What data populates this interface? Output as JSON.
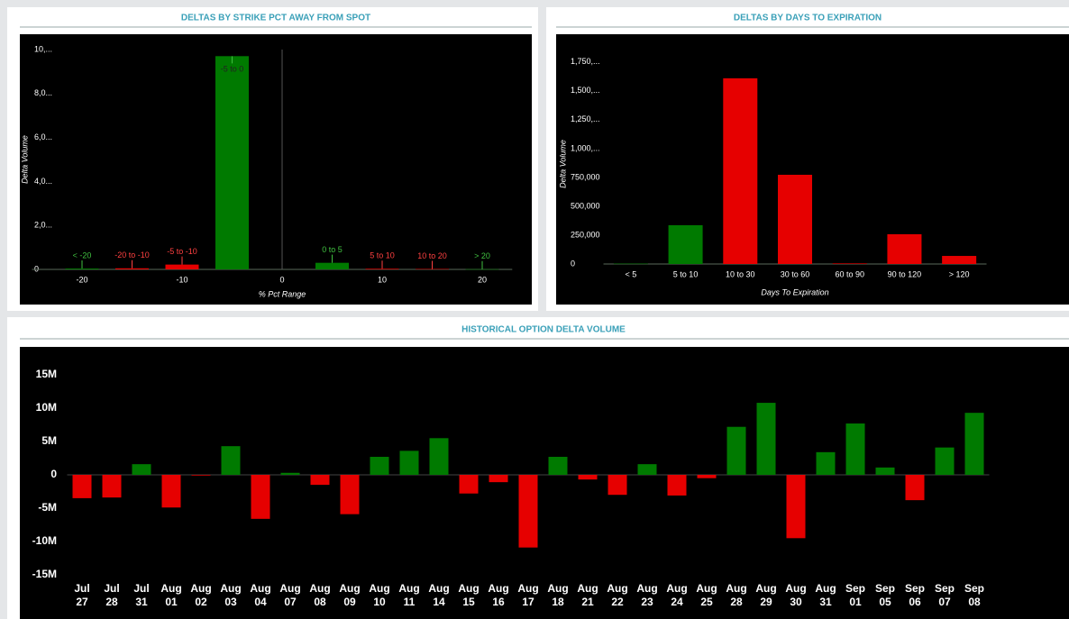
{
  "chart_data": [
    {
      "type": "bar",
      "title": "DELTAS BY STRIKE PCT AWAY FROM SPOT",
      "x_label": "% Pct Range",
      "y_label": "Delta Volume",
      "categories": [
        "< -20",
        "-20 to -10",
        "-5 to -10",
        "-5 to 0",
        "0 to 5",
        "5 to 10",
        "10 to 20",
        "> 20"
      ],
      "x": [
        -20,
        -15,
        -10,
        -5,
        5,
        10,
        15,
        20
      ],
      "values": [
        40000,
        50000,
        220000,
        9700000,
        300000,
        30000,
        20000,
        10000
      ],
      "colors": [
        "#007a00",
        "#e60000",
        "#e60000",
        "#007a00",
        "#007a00",
        "#e60000",
        "#e60000",
        "#007a00"
      ],
      "xlim": [
        -25,
        23
      ],
      "xticks": [
        -20,
        -10,
        0,
        10,
        20
      ],
      "ylim": [
        0,
        10000000
      ],
      "yticks": [
        0,
        {
          "value": 2000000,
          "label": "2,0..."
        },
        {
          "value": 4000000,
          "label": "4,0..."
        },
        {
          "value": 6000000,
          "label": "6,0..."
        },
        {
          "value": 8000000,
          "label": "8,0..."
        },
        {
          "value": 10000000,
          "label": "10,..."
        }
      ]
    },
    {
      "type": "bar",
      "title": "DELTAS BY DAYS TO EXPIRATION",
      "x_label": "Days To Expiration",
      "y_label": "Delta Volume",
      "categories": [
        "< 5",
        "5 to 10",
        "10 to 30",
        "30 to 60",
        "60 to 90",
        "90 to 120",
        "> 120"
      ],
      "values": [
        3000,
        336000,
        1609000,
        773000,
        5000,
        258000,
        70000
      ],
      "colors": [
        "#007a00",
        "#007a00",
        "#e60000",
        "#e60000",
        "#e60000",
        "#e60000",
        "#e60000"
      ],
      "ylim": [
        0,
        1850000
      ],
      "yticks": [
        0,
        {
          "value": 250000,
          "label": "250,000"
        },
        {
          "value": 500000,
          "label": "500,000"
        },
        {
          "value": 750000,
          "label": "750,000"
        },
        {
          "value": 1000000,
          "label": "1,000,..."
        },
        {
          "value": 1250000,
          "label": "1,250,..."
        },
        {
          "value": 1500000,
          "label": "1,500,..."
        },
        {
          "value": 1750000,
          "label": "1,750,..."
        }
      ]
    },
    {
      "type": "bar",
      "title": "HISTORICAL OPTION DELTA VOLUME",
      "categories": [
        "Jul 27",
        "Jul 28",
        "Jul 31",
        "Aug 01",
        "Aug 02",
        "Aug 03",
        "Aug 04",
        "Aug 07",
        "Aug 08",
        "Aug 09",
        "Aug 10",
        "Aug 11",
        "Aug 14",
        "Aug 15",
        "Aug 16",
        "Aug 17",
        "Aug 18",
        "Aug 21",
        "Aug 22",
        "Aug 23",
        "Aug 24",
        "Aug 25",
        "Aug 28",
        "Aug 29",
        "Aug 30",
        "Aug 31",
        "Sep 01",
        "Sep 05",
        "Sep 06",
        "Sep 07",
        "Sep 08"
      ],
      "values": [
        -3500000,
        -3400000,
        1600000,
        -4900000,
        -100000,
        4300000,
        -6600000,
        300000,
        -1500000,
        -5900000,
        2700000,
        3600000,
        5500000,
        -2800000,
        -1100000,
        -10900000,
        2700000,
        -700000,
        -3000000,
        1600000,
        -3100000,
        -500000,
        7200000,
        10800000,
        -9500000,
        3400000,
        7700000,
        1100000,
        -3800000,
        4100000,
        9300000
      ],
      "colors": [
        "#e60000",
        "#e60000",
        "#007a00",
        "#e60000",
        "#e60000",
        "#007a00",
        "#e60000",
        "#007a00",
        "#e60000",
        "#e60000",
        "#007a00",
        "#007a00",
        "#007a00",
        "#e60000",
        "#e60000",
        "#e60000",
        "#007a00",
        "#e60000",
        "#e60000",
        "#007a00",
        "#e60000",
        "#e60000",
        "#007a00",
        "#007a00",
        "#e60000",
        "#007a00",
        "#007a00",
        "#007a00",
        "#e60000",
        "#007a00",
        "#007a00"
      ],
      "ylim": [
        -16000000,
        19000000
      ],
      "yticks": [
        {
          "value": -15000000,
          "label": "-15M"
        },
        {
          "value": -10000000,
          "label": "-10M"
        },
        {
          "value": -5000000,
          "label": "-5M"
        },
        0,
        {
          "value": 5000000,
          "label": "5M"
        },
        {
          "value": 10000000,
          "label": "10M"
        },
        {
          "value": 15000000,
          "label": "15M"
        }
      ]
    }
  ]
}
